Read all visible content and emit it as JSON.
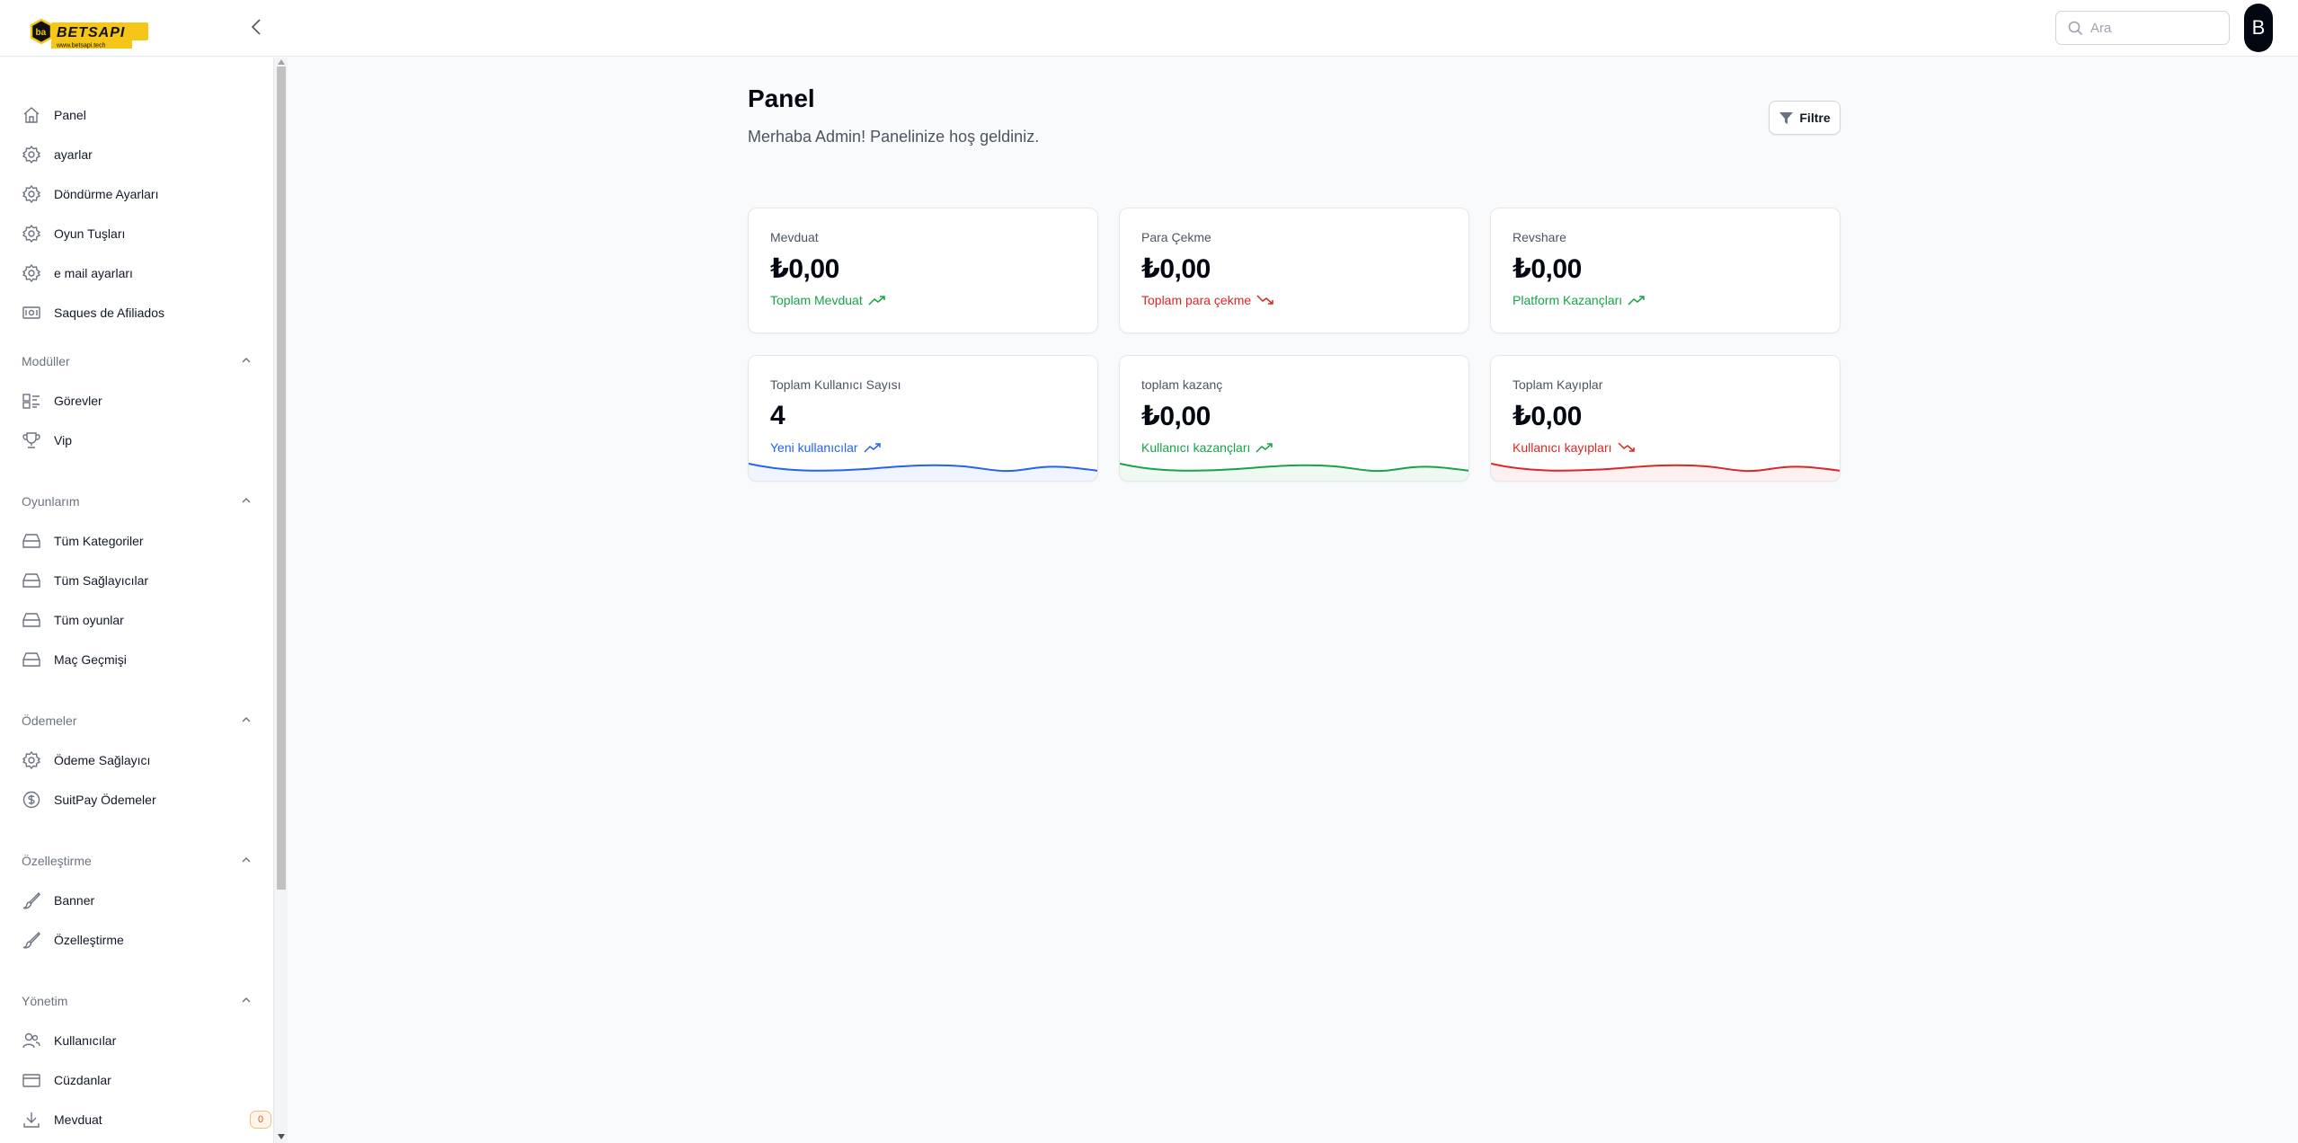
{
  "logo": {
    "brand": "BETSAPI",
    "url": "www.betsapi.tech"
  },
  "header": {
    "search_placeholder": "Ara",
    "avatar_initial": "B"
  },
  "sidebar": {
    "items": [
      {
        "label": "Panel",
        "icon": "home-icon"
      },
      {
        "label": "ayarlar",
        "icon": "gear-icon"
      },
      {
        "label": "Döndürme Ayarları",
        "icon": "gear-icon"
      },
      {
        "label": "Oyun Tuşları",
        "icon": "gear-icon"
      },
      {
        "label": "e mail ayarları",
        "icon": "gear-icon"
      },
      {
        "label": "Saques de Afiliados",
        "icon": "banknote-icon"
      }
    ],
    "sections": [
      {
        "title": "Modüller",
        "items": [
          {
            "label": "Görevler",
            "icon": "tasks-icon"
          },
          {
            "label": "Vip",
            "icon": "trophy-icon"
          }
        ]
      },
      {
        "title": "Oyunlarım",
        "items": [
          {
            "label": "Tüm Kategoriler",
            "icon": "inbox-icon"
          },
          {
            "label": "Tüm Sağlayıcılar",
            "icon": "inbox-icon"
          },
          {
            "label": "Tüm oyunlar",
            "icon": "inbox-icon"
          },
          {
            "label": "Maç Geçmişi",
            "icon": "inbox-icon"
          }
        ]
      },
      {
        "title": "Ödemeler",
        "items": [
          {
            "label": "Ödeme Sağlayıcı",
            "icon": "gear-icon"
          },
          {
            "label": "SuitPay Ödemeler",
            "icon": "dollar-icon"
          }
        ]
      },
      {
        "title": "Özelleştirme",
        "items": [
          {
            "label": "Banner",
            "icon": "brush-icon"
          },
          {
            "label": "Özelleştirme",
            "icon": "brush-icon"
          }
        ]
      },
      {
        "title": "Yönetim",
        "items": [
          {
            "label": "Kullanıcılar",
            "icon": "users-icon"
          },
          {
            "label": "Cüzdanlar",
            "icon": "wallet-icon"
          },
          {
            "label": "Mevduat",
            "icon": "download-icon",
            "badge": "0"
          }
        ]
      }
    ]
  },
  "main": {
    "title": "Panel",
    "subtitle": "Merhaba Admin! Panelinize hoş geldiniz.",
    "filter_label": "Filtre",
    "stats": [
      {
        "label": "Mevduat",
        "value": "₺0,00",
        "desc": "Toplam Mevduat",
        "trend": "up",
        "color": "#16a34a"
      },
      {
        "label": "Para Çekme",
        "value": "₺0,00",
        "desc": "Toplam para çekme",
        "trend": "down",
        "color": "#dc2626"
      },
      {
        "label": "Revshare",
        "value": "₺0,00",
        "desc": "Platform Kazançları",
        "trend": "up",
        "color": "#16a34a"
      },
      {
        "label": "Toplam Kullanıcı Sayısı",
        "value": "4",
        "desc": "Yeni kullanıcılar",
        "trend": "up",
        "color": "#2563eb"
      },
      {
        "label": "toplam kazanç",
        "value": "₺0,00",
        "desc": "Kullanıcı kazançları",
        "trend": "up",
        "color": "#16a34a"
      },
      {
        "label": "Toplam Kayıplar",
        "value": "₺0,00",
        "desc": "Kullanıcı kayıpları",
        "trend": "down",
        "color": "#dc2626"
      }
    ]
  },
  "colors": {
    "accent_blue": "#2563eb",
    "success": "#16a34a",
    "danger": "#dc2626",
    "logo_gold": "#f5c518"
  }
}
